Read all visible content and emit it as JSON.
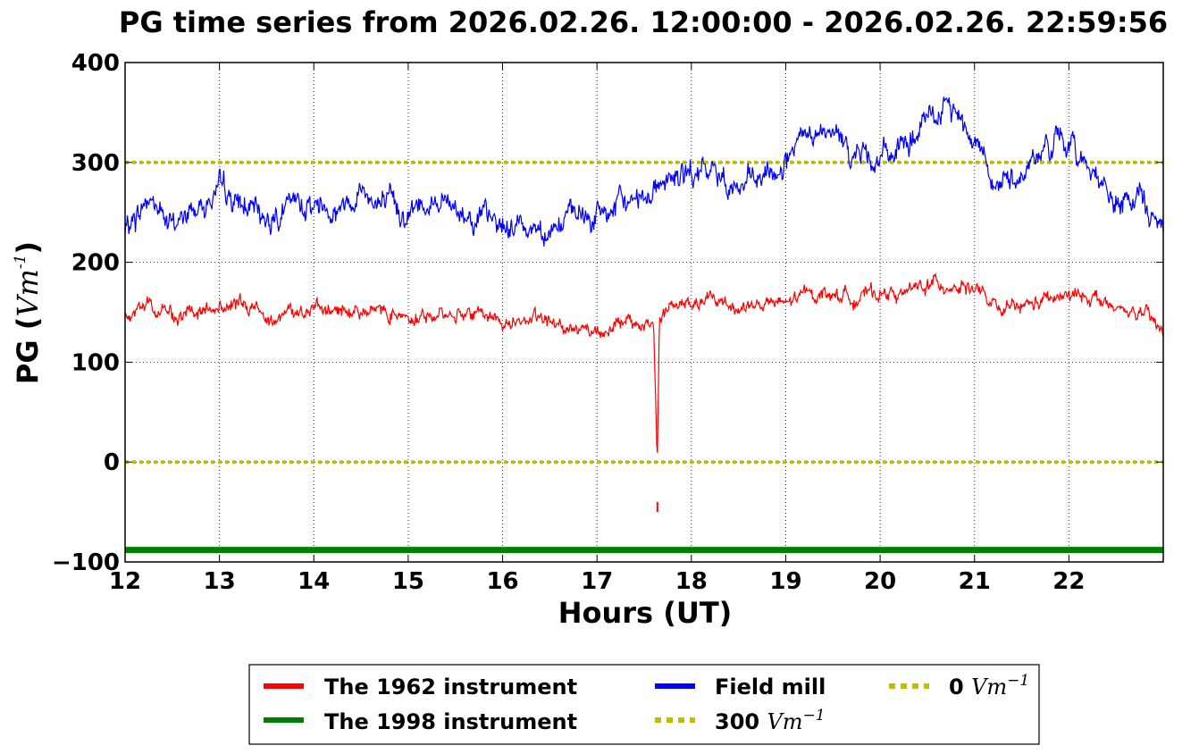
{
  "chart_data": {
    "type": "line",
    "title": "PG time series from 2026.02.26. 12:00:00 - 2026.02.26. 22:59:56",
    "xlabel": "Hours (UT)",
    "ylabel": {
      "prefix": "PG (",
      "unit": "Vm",
      "exp": "-1",
      "suffix": ")"
    },
    "xlim": [
      12,
      23
    ],
    "ylim": [
      -100,
      400
    ],
    "xticks": [
      "12",
      "13",
      "14",
      "15",
      "16",
      "17",
      "18",
      "19",
      "20",
      "21",
      "22"
    ],
    "yticks": [
      "400",
      "300",
      "200",
      "100",
      "0",
      "−100"
    ],
    "ytick_values": [
      400,
      300,
      200,
      100,
      0,
      -100
    ],
    "xtick_values": [
      12,
      13,
      14,
      15,
      16,
      17,
      18,
      19,
      20,
      21,
      22
    ],
    "grid": true,
    "legend_position": "bottom-center-below",
    "series": [
      {
        "name": "The 1962 instrument",
        "color": "#ff0000",
        "x": [
          12.0,
          12.25,
          12.5,
          12.75,
          13.0,
          13.25,
          13.5,
          13.75,
          14.0,
          14.25,
          14.5,
          14.75,
          15.0,
          15.25,
          15.5,
          15.75,
          16.0,
          16.25,
          16.5,
          16.75,
          17.0,
          17.25,
          17.5,
          17.6,
          17.64,
          17.66,
          17.7,
          17.75,
          18.0,
          18.25,
          18.5,
          18.75,
          19.0,
          19.25,
          19.5,
          19.75,
          20.0,
          20.25,
          20.5,
          20.75,
          21.0,
          21.25,
          21.5,
          21.75,
          22.0,
          22.25,
          22.5,
          22.75,
          23.0
        ],
        "values": [
          145,
          158,
          148,
          147,
          155,
          157,
          148,
          150,
          152,
          150,
          153,
          152,
          148,
          145,
          150,
          150,
          140,
          143,
          140,
          135,
          132,
          138,
          137,
          140,
          -5,
          140,
          150,
          155,
          158,
          162,
          155,
          158,
          158,
          170,
          168,
          165,
          170,
          168,
          178,
          178,
          175,
          150,
          155,
          162,
          165,
          168,
          150,
          150,
          130
        ]
      },
      {
        "name": "The 1998 instrument",
        "color": "#008000",
        "x": [
          12.0,
          23.0
        ],
        "values": [
          -88,
          -88
        ]
      },
      {
        "name": "Field mill",
        "color": "#0000ff",
        "x": [
          12.0,
          12.25,
          12.5,
          12.75,
          13.0,
          13.25,
          13.5,
          13.75,
          14.0,
          14.25,
          14.5,
          14.75,
          15.0,
          15.25,
          15.5,
          15.75,
          16.0,
          16.25,
          16.5,
          16.75,
          17.0,
          17.25,
          17.5,
          17.75,
          18.0,
          18.25,
          18.5,
          18.75,
          19.0,
          19.25,
          19.5,
          19.75,
          20.0,
          20.25,
          20.5,
          20.75,
          21.0,
          21.25,
          21.5,
          21.75,
          22.0,
          22.25,
          22.5,
          22.75,
          23.0
        ],
        "values": [
          230,
          265,
          235,
          255,
          270,
          255,
          245,
          255,
          260,
          255,
          275,
          255,
          250,
          265,
          255,
          245,
          235,
          238,
          235,
          245,
          245,
          255,
          270,
          285,
          285,
          290,
          275,
          280,
          300,
          325,
          325,
          310,
          305,
          315,
          340,
          355,
          330,
          275,
          290,
          315,
          320,
          295,
          255,
          265,
          230
        ]
      },
      {
        "name": "300 Vm-1",
        "label_num": "300",
        "label_unit": "Vm",
        "label_exp": "−1",
        "color": "#bfbf00",
        "style": "dotted",
        "x": [
          12.0,
          23.0
        ],
        "values": [
          300,
          300
        ]
      },
      {
        "name": "0 Vm-1",
        "label_num": "0",
        "label_unit": "Vm",
        "label_exp": "−1",
        "color": "#bfbf00",
        "style": "dotted",
        "x": [
          12.0,
          23.0
        ],
        "values": [
          0,
          0
        ]
      }
    ],
    "annotations": [
      {
        "x": 17.64,
        "values": [
          -40,
          -50
        ],
        "color": "#ff0000",
        "note": "isolated spike segment"
      }
    ]
  }
}
